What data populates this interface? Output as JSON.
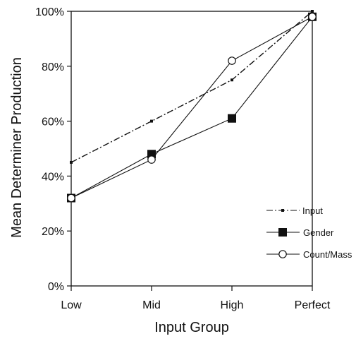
{
  "chart_data": {
    "type": "line",
    "title": "",
    "xlabel": "Input Group",
    "ylabel": "Mean Determiner Production",
    "categories": [
      "Low",
      "Mid",
      "High",
      "Perfect"
    ],
    "yticks": [
      "0%",
      "20%",
      "40%",
      "60%",
      "80%",
      "100%"
    ],
    "ylim": [
      0,
      100
    ],
    "grid": false,
    "legend_position": "bottom-right",
    "series": [
      {
        "name": "Input",
        "values": [
          45,
          60,
          75,
          100
        ],
        "style": "dash-dot",
        "marker": "small-square",
        "color": "#111111"
      },
      {
        "name": "Gender",
        "values": [
          32,
          48,
          61,
          98
        ],
        "style": "solid",
        "marker": "filled-square",
        "color": "#111111"
      },
      {
        "name": "Count/Mass",
        "values": [
          32,
          46,
          82,
          98
        ],
        "style": "solid",
        "marker": "open-circle",
        "color": "#111111"
      }
    ]
  }
}
